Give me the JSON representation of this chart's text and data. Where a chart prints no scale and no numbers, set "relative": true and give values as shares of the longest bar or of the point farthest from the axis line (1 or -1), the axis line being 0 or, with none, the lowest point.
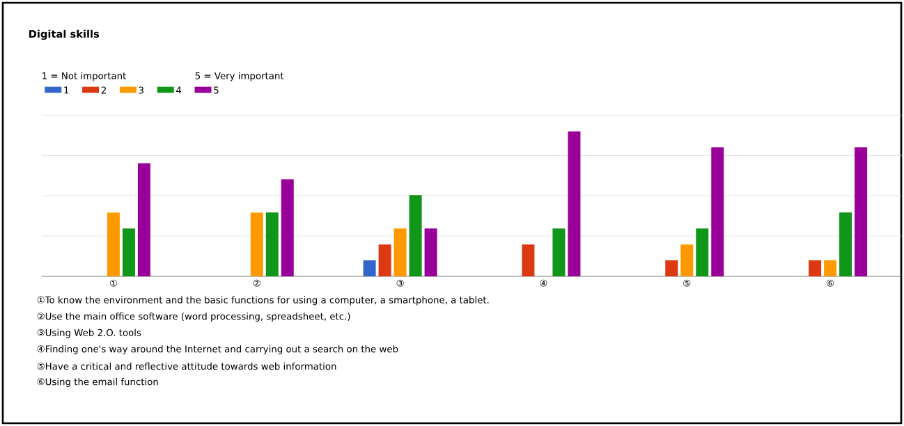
{
  "chart_data": {
    "type": "bar",
    "title": "Digital skills",
    "categories": [
      "①",
      "②",
      "③",
      "④",
      "⑤",
      "⑥"
    ],
    "relative": true,
    "series": [
      {
        "name": "1",
        "color": "#3366cc",
        "values": [
          0,
          0,
          0.11,
          0,
          0,
          0
        ]
      },
      {
        "name": "2",
        "color": "#dc3912",
        "values": [
          0,
          0,
          0.22,
          0.22,
          0.11,
          0.11
        ]
      },
      {
        "name": "3",
        "color": "#ff9900",
        "values": [
          0.44,
          0.44,
          0.33,
          0,
          0.22,
          0.11
        ]
      },
      {
        "name": "4",
        "color": "#109618",
        "values": [
          0.33,
          0.44,
          0.56,
          0.33,
          0.33,
          0.44
        ]
      },
      {
        "name": "5",
        "color": "#990099",
        "values": [
          0.78,
          0.67,
          0.33,
          1,
          0.89,
          0.89
        ]
      }
    ],
    "grid": "y",
    "legend": "top left",
    "annotations": [
      "1 = Not important",
      "5 = Very important",
      "①To know the environment and the basic functions for using a computer, a smartphone, a tablet.",
      "②Use the main office software (word processing, spreadsheet, etc.)",
      "③Using Web 2.O. tools",
      "④Finding one's way around the Internet and carrying out a search on the web",
      "⑤Have a critical and reflective attitude towards web information",
      "⑥Using the email function"
    ]
  }
}
